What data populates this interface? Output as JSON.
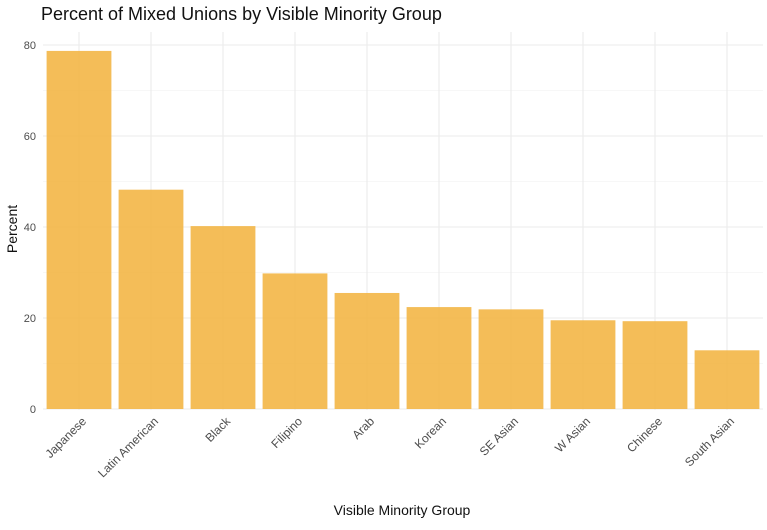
{
  "chart_data": {
    "type": "bar",
    "title": "Percent of Mixed Unions by Visible Minority Group",
    "xlabel": "Visible Minority Group",
    "ylabel": "Percent",
    "categories": [
      "Japanese",
      "Latin American",
      "Black",
      "Filipino",
      "Arab",
      "Korean",
      "SE Asian",
      "W Asian",
      "Chinese",
      "South Asian"
    ],
    "values": [
      78.7,
      48.2,
      40.2,
      29.8,
      25.5,
      22.4,
      21.9,
      19.5,
      19.3,
      12.9
    ],
    "ylim": [
      0,
      80
    ],
    "yticks": [
      0,
      20,
      40,
      60,
      80
    ],
    "grid": true,
    "bar_color": "#f2b441"
  }
}
